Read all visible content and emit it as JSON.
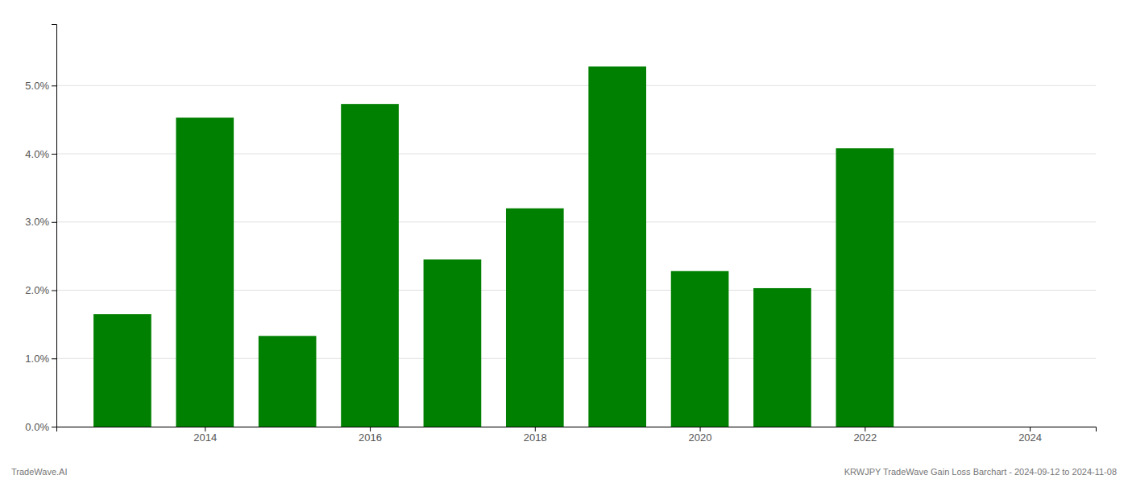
{
  "chart_data": {
    "type": "bar",
    "x": [
      2013,
      2014,
      2015,
      2016,
      2017,
      2018,
      2019,
      2020,
      2021,
      2022
    ],
    "values": [
      0.0165,
      0.0453,
      0.0133,
      0.0473,
      0.0245,
      0.032,
      0.0528,
      0.0228,
      0.0203,
      0.0408
    ],
    "color": "#008000",
    "xlim": [
      2012.2,
      2024.8
    ],
    "xticks": [
      2014,
      2016,
      2018,
      2020,
      2022,
      2024
    ],
    "ylim": [
      0,
      0.059
    ],
    "yticks": [
      {
        "value": 0.0,
        "label": "0.0%"
      },
      {
        "value": 0.01,
        "label": "1.0%"
      },
      {
        "value": 0.02,
        "label": "2.0%"
      },
      {
        "value": 0.03,
        "label": "3.0%"
      },
      {
        "value": 0.04,
        "label": "4.0%"
      },
      {
        "value": 0.05,
        "label": "5.0%"
      }
    ],
    "grid": true,
    "annotations": [
      "TradeWave.AI",
      "KRWJPY TradeWave Gain Loss Barchart - 2024-09-12 to 2024-11-08"
    ]
  }
}
